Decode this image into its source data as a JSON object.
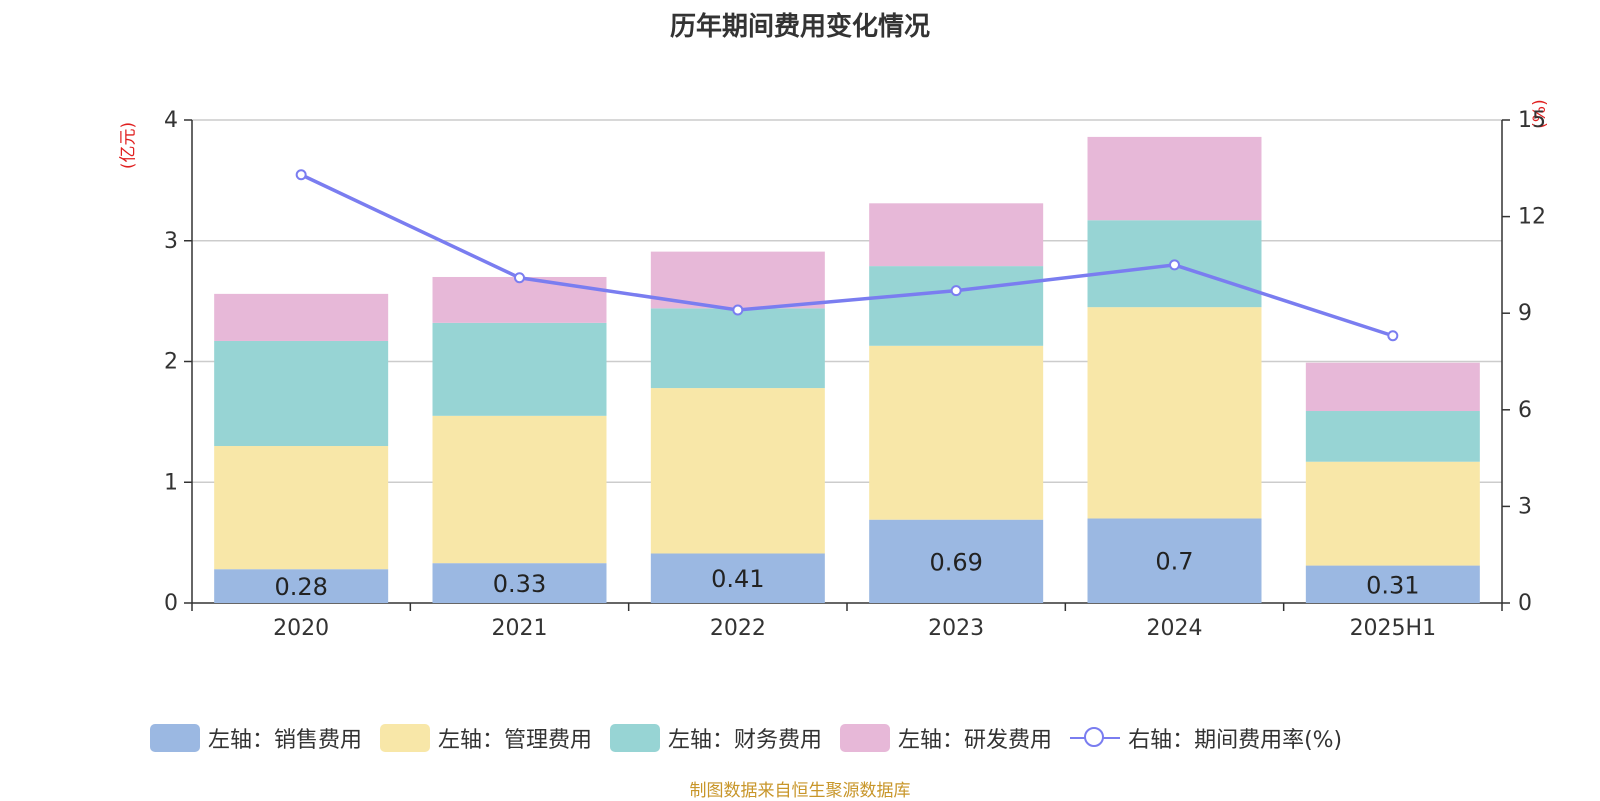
{
  "title": "历年期间费用变化情况",
  "left_unit": "(亿元)",
  "right_unit": "(%)",
  "source": "制图数据来自恒生聚源数据库",
  "colors": {
    "sales": "#9bb8e2",
    "admin": "#f8e7a8",
    "finance": "#97d4d4",
    "rd": "#e7b8d8",
    "rate": "#7a7df0"
  },
  "legend": [
    {
      "label": "左轴：销售费用",
      "color": "#9bb8e2",
      "kind": "bar"
    },
    {
      "label": "左轴：管理费用",
      "color": "#f8e7a8",
      "kind": "bar"
    },
    {
      "label": "左轴：财务费用",
      "color": "#97d4d4",
      "kind": "bar"
    },
    {
      "label": "左轴：研发费用",
      "color": "#e7b8d8",
      "kind": "bar"
    },
    {
      "label": "右轴：期间费用率(%)",
      "color": "#7a7df0",
      "kind": "line"
    }
  ],
  "chart_data": {
    "type": "bar",
    "stacked": true,
    "categories": [
      "2020",
      "2021",
      "2022",
      "2023",
      "2024",
      "2025H1"
    ],
    "series": [
      {
        "name": "左轴：销售费用",
        "axis": "left",
        "values": [
          0.28,
          0.33,
          0.41,
          0.69,
          0.7,
          0.31
        ]
      },
      {
        "name": "左轴：管理费用",
        "axis": "left",
        "values": [
          1.02,
          1.22,
          1.37,
          1.44,
          1.75,
          0.86
        ]
      },
      {
        "name": "左轴：财务费用",
        "axis": "left",
        "values": [
          0.87,
          0.77,
          0.66,
          0.66,
          0.72,
          0.42
        ]
      },
      {
        "name": "左轴：研发费用",
        "axis": "left",
        "values": [
          0.39,
          0.38,
          0.47,
          0.52,
          0.69,
          0.4
        ]
      },
      {
        "name": "右轴：期间费用率(%)",
        "axis": "right",
        "type": "line",
        "values": [
          13.3,
          10.1,
          9.1,
          9.7,
          10.5,
          8.3
        ]
      }
    ],
    "data_labels": [
      "0.28",
      "0.33",
      "0.41",
      "0.69",
      "0.7",
      "0.31"
    ],
    "y_left": {
      "ticks": [
        0,
        1,
        2,
        3,
        4
      ],
      "lim": [
        0,
        4
      ]
    },
    "y_right": {
      "ticks": [
        0,
        3,
        6,
        9,
        12,
        15
      ],
      "lim": [
        0,
        15
      ]
    },
    "grid": true,
    "legend_position": "bottom"
  }
}
